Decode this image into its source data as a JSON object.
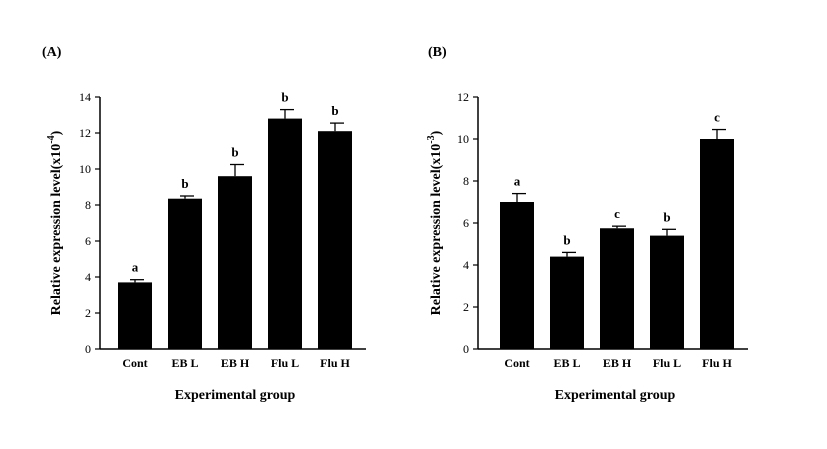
{
  "chart_data": [
    {
      "type": "bar",
      "panel_label": "(A)",
      "categories": [
        "Cont",
        "EB L",
        "EB H",
        "Flu L",
        "Flu H"
      ],
      "values": [
        3.7,
        8.35,
        9.6,
        12.8,
        12.1
      ],
      "errors": [
        0.15,
        0.15,
        0.65,
        0.5,
        0.45
      ],
      "significance": [
        "a",
        "b",
        "b",
        "b",
        "b"
      ],
      "xlabel": "Experimental group",
      "ylabel": "Relative expression level(x10",
      "ylabel_exp": "-4",
      "ylabel_close": ")",
      "ylim": [
        0,
        14
      ],
      "yticks": [
        0,
        2,
        4,
        6,
        8,
        10,
        12,
        14
      ],
      "bar_color": "#000000",
      "grid": false
    },
    {
      "type": "bar",
      "panel_label": "(B)",
      "categories": [
        "Cont",
        "EB L",
        "EB H",
        "Flu L",
        "Flu H"
      ],
      "values": [
        7.0,
        4.4,
        5.75,
        5.4,
        10.0
      ],
      "errors": [
        0.4,
        0.2,
        0.1,
        0.3,
        0.45
      ],
      "significance": [
        "a",
        "b",
        "c",
        "b",
        "c"
      ],
      "xlabel": "Experimental group",
      "ylabel": "Relative expression level(x10",
      "ylabel_exp": "-3",
      "ylabel_close": ")",
      "ylim": [
        0,
        12
      ],
      "yticks": [
        0,
        2,
        4,
        6,
        8,
        10,
        12
      ],
      "bar_color": "#000000",
      "grid": false
    }
  ]
}
